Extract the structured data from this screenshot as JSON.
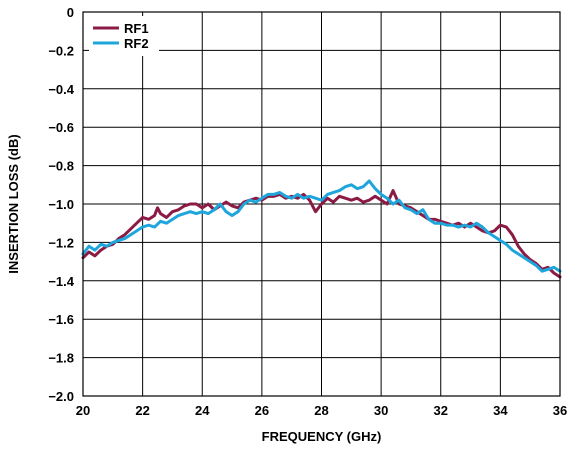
{
  "chart_data": {
    "type": "line",
    "xlabel": "FREQUENCY (GHz)",
    "ylabel": "INSERTION LOSS (dB)",
    "xlim": [
      20,
      36
    ],
    "ylim": [
      -2.0,
      0
    ],
    "x_ticks": [
      20,
      22,
      24,
      26,
      28,
      30,
      32,
      34,
      36
    ],
    "x_tick_labels": [
      "20",
      "22",
      "24",
      "26",
      "28",
      "30",
      "32",
      "34",
      "36"
    ],
    "y_ticks": [
      0,
      -0.2,
      -0.4,
      -0.6,
      -0.8,
      -1.0,
      -1.2,
      -1.4,
      -1.6,
      -1.8,
      -2.0
    ],
    "y_tick_labels": [
      "0",
      "−0.2",
      "−0.4",
      "−0.6",
      "−0.8",
      "−1.0",
      "−1.2",
      "−1.4",
      "−1.6",
      "−1.8",
      "−2.0"
    ],
    "grid": true,
    "legend_position": "top-left",
    "series": [
      {
        "name": "RF1",
        "color": "#8b1a45",
        "points": [
          [
            20.0,
            -1.28
          ],
          [
            20.2,
            -1.25
          ],
          [
            20.4,
            -1.27
          ],
          [
            20.6,
            -1.24
          ],
          [
            20.8,
            -1.22
          ],
          [
            21.0,
            -1.21
          ],
          [
            21.2,
            -1.18
          ],
          [
            21.4,
            -1.16
          ],
          [
            21.6,
            -1.13
          ],
          [
            21.8,
            -1.1
          ],
          [
            22.0,
            -1.07
          ],
          [
            22.2,
            -1.08
          ],
          [
            22.4,
            -1.06
          ],
          [
            22.5,
            -1.02
          ],
          [
            22.6,
            -1.05
          ],
          [
            22.8,
            -1.07
          ],
          [
            23.0,
            -1.04
          ],
          [
            23.2,
            -1.03
          ],
          [
            23.4,
            -1.01
          ],
          [
            23.6,
            -1.0
          ],
          [
            23.8,
            -1.0
          ],
          [
            24.0,
            -1.02
          ],
          [
            24.2,
            -1.0
          ],
          [
            24.4,
            -1.03
          ],
          [
            24.6,
            -1.01
          ],
          [
            24.8,
            -0.99
          ],
          [
            25.0,
            -1.01
          ],
          [
            25.2,
            -1.02
          ],
          [
            25.4,
            -0.99
          ],
          [
            25.6,
            -0.98
          ],
          [
            25.8,
            -0.97
          ],
          [
            26.0,
            -0.98
          ],
          [
            26.2,
            -0.96
          ],
          [
            26.4,
            -0.96
          ],
          [
            26.6,
            -0.95
          ],
          [
            26.8,
            -0.97
          ],
          [
            27.0,
            -0.96
          ],
          [
            27.2,
            -0.97
          ],
          [
            27.4,
            -0.95
          ],
          [
            27.6,
            -0.98
          ],
          [
            27.8,
            -1.04
          ],
          [
            28.0,
            -1.0
          ],
          [
            28.2,
            -0.97
          ],
          [
            28.4,
            -0.99
          ],
          [
            28.6,
            -0.96
          ],
          [
            28.8,
            -0.97
          ],
          [
            29.0,
            -0.98
          ],
          [
            29.2,
            -0.97
          ],
          [
            29.4,
            -0.99
          ],
          [
            29.6,
            -0.98
          ],
          [
            29.8,
            -0.96
          ],
          [
            30.0,
            -0.98
          ],
          [
            30.2,
            -1.0
          ],
          [
            30.4,
            -0.93
          ],
          [
            30.6,
            -1.0
          ],
          [
            30.8,
            -1.01
          ],
          [
            31.0,
            -1.02
          ],
          [
            31.2,
            -1.04
          ],
          [
            31.4,
            -1.06
          ],
          [
            31.6,
            -1.08
          ],
          [
            31.8,
            -1.08
          ],
          [
            32.0,
            -1.09
          ],
          [
            32.2,
            -1.1
          ],
          [
            32.4,
            -1.11
          ],
          [
            32.6,
            -1.1
          ],
          [
            32.8,
            -1.12
          ],
          [
            33.0,
            -1.1
          ],
          [
            33.2,
            -1.12
          ],
          [
            33.4,
            -1.14
          ],
          [
            33.6,
            -1.15
          ],
          [
            33.8,
            -1.14
          ],
          [
            34.0,
            -1.11
          ],
          [
            34.2,
            -1.12
          ],
          [
            34.4,
            -1.16
          ],
          [
            34.6,
            -1.22
          ],
          [
            34.8,
            -1.26
          ],
          [
            35.0,
            -1.29
          ],
          [
            35.2,
            -1.31
          ],
          [
            35.4,
            -1.34
          ],
          [
            35.6,
            -1.33
          ],
          [
            35.8,
            -1.36
          ],
          [
            36.0,
            -1.38
          ]
        ]
      },
      {
        "name": "RF2",
        "color": "#1ea6dc",
        "points": [
          [
            20.0,
            -1.26
          ],
          [
            20.2,
            -1.22
          ],
          [
            20.4,
            -1.24
          ],
          [
            20.6,
            -1.21
          ],
          [
            20.8,
            -1.22
          ],
          [
            21.0,
            -1.2
          ],
          [
            21.2,
            -1.19
          ],
          [
            21.4,
            -1.18
          ],
          [
            21.6,
            -1.16
          ],
          [
            21.8,
            -1.14
          ],
          [
            22.0,
            -1.12
          ],
          [
            22.2,
            -1.11
          ],
          [
            22.4,
            -1.12
          ],
          [
            22.6,
            -1.09
          ],
          [
            22.8,
            -1.1
          ],
          [
            23.0,
            -1.08
          ],
          [
            23.2,
            -1.06
          ],
          [
            23.4,
            -1.05
          ],
          [
            23.6,
            -1.04
          ],
          [
            23.8,
            -1.05
          ],
          [
            24.0,
            -1.04
          ],
          [
            24.2,
            -1.05
          ],
          [
            24.4,
            -1.03
          ],
          [
            24.6,
            -1.0
          ],
          [
            24.8,
            -1.04
          ],
          [
            25.0,
            -1.06
          ],
          [
            25.2,
            -1.04
          ],
          [
            25.4,
            -1.0
          ],
          [
            25.6,
            -0.98
          ],
          [
            25.8,
            -0.99
          ],
          [
            26.0,
            -0.97
          ],
          [
            26.2,
            -0.95
          ],
          [
            26.4,
            -0.95
          ],
          [
            26.6,
            -0.94
          ],
          [
            26.8,
            -0.96
          ],
          [
            27.0,
            -0.97
          ],
          [
            27.2,
            -0.95
          ],
          [
            27.4,
            -0.97
          ],
          [
            27.6,
            -0.96
          ],
          [
            27.8,
            -0.97
          ],
          [
            28.0,
            -0.98
          ],
          [
            28.2,
            -0.95
          ],
          [
            28.4,
            -0.94
          ],
          [
            28.6,
            -0.93
          ],
          [
            28.8,
            -0.91
          ],
          [
            29.0,
            -0.9
          ],
          [
            29.2,
            -0.92
          ],
          [
            29.4,
            -0.91
          ],
          [
            29.6,
            -0.88
          ],
          [
            29.8,
            -0.92
          ],
          [
            30.0,
            -0.95
          ],
          [
            30.2,
            -0.97
          ],
          [
            30.4,
            -1.0
          ],
          [
            30.6,
            -0.98
          ],
          [
            30.8,
            -1.02
          ],
          [
            31.0,
            -1.03
          ],
          [
            31.2,
            -1.05
          ],
          [
            31.4,
            -1.03
          ],
          [
            31.6,
            -1.08
          ],
          [
            31.8,
            -1.1
          ],
          [
            32.0,
            -1.1
          ],
          [
            32.2,
            -1.11
          ],
          [
            32.4,
            -1.11
          ],
          [
            32.6,
            -1.12
          ],
          [
            32.8,
            -1.11
          ],
          [
            33.0,
            -1.12
          ],
          [
            33.2,
            -1.1
          ],
          [
            33.4,
            -1.12
          ],
          [
            33.6,
            -1.15
          ],
          [
            33.8,
            -1.17
          ],
          [
            34.0,
            -1.19
          ],
          [
            34.2,
            -1.21
          ],
          [
            34.4,
            -1.24
          ],
          [
            34.6,
            -1.26
          ],
          [
            34.8,
            -1.28
          ],
          [
            35.0,
            -1.3
          ],
          [
            35.2,
            -1.32
          ],
          [
            35.4,
            -1.35
          ],
          [
            35.6,
            -1.34
          ],
          [
            35.8,
            -1.33
          ],
          [
            36.0,
            -1.35
          ]
        ]
      }
    ]
  }
}
